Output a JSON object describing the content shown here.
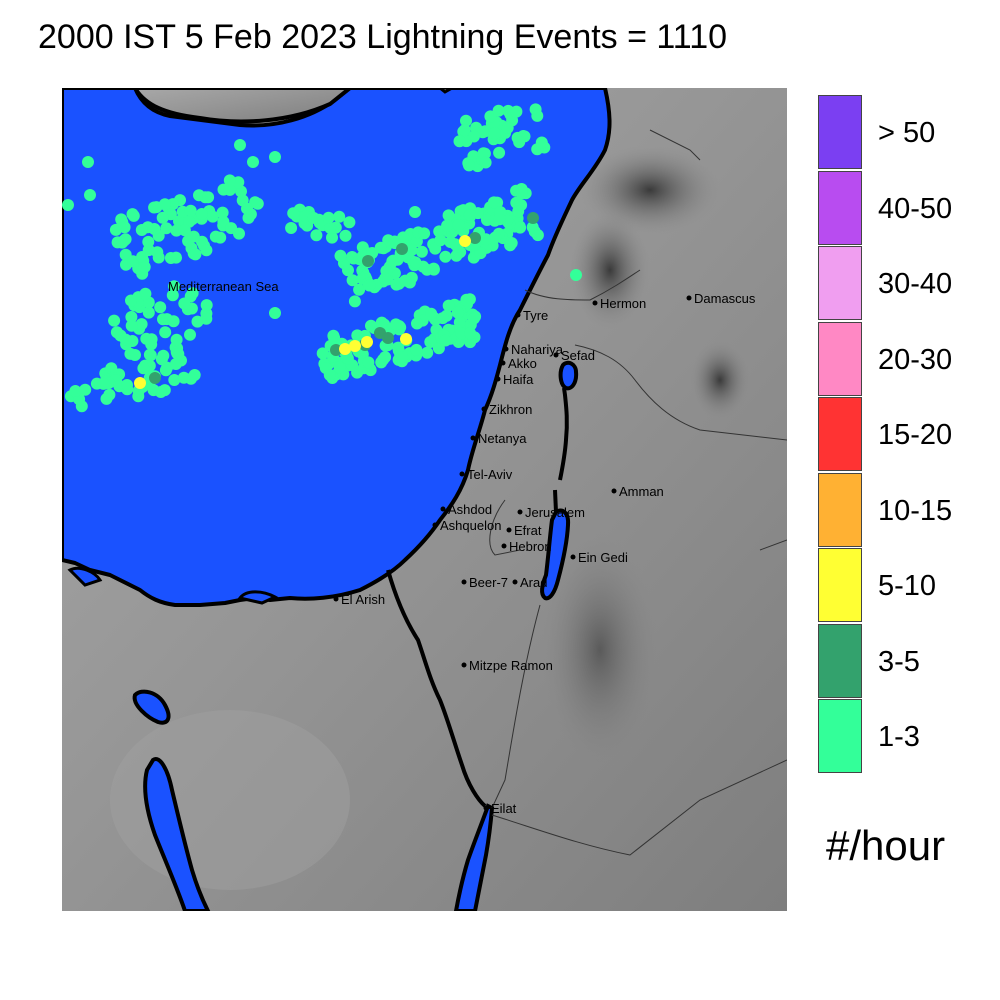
{
  "title": "2000 IST 5 Feb 2023 Lightning Events = 1110",
  "sea_label": "Mediterranean Sea",
  "units": "#/hour",
  "legend": [
    {
      "label": "> 50",
      "color": "#7b3ff2"
    },
    {
      "label": "40-50",
      "color": "#b84cf0"
    },
    {
      "label": "30-40",
      "color": "#f09ef0"
    },
    {
      "label": "20-30",
      "color": "#ff88c4"
    },
    {
      "label": "15-20",
      "color": "#ff3333"
    },
    {
      "label": "10-15",
      "color": "#ffb133"
    },
    {
      "label": "5-10",
      "color": "#ffff33"
    },
    {
      "label": "3-5",
      "color": "#33a26d"
    },
    {
      "label": "1-3",
      "color": "#33ff99"
    }
  ],
  "colors": {
    "sea": "#1a52ff",
    "land": "#8c8c8c",
    "coast": "#000000"
  },
  "cities": [
    "Tyre",
    "Hermon",
    "Damascus",
    "Nahariya",
    "Akko",
    "Sefad",
    "Haifa",
    "Zikhron",
    "Netanya",
    "Tel-Aviv",
    "Amman",
    "Ashdod",
    "Jerusalem",
    "Ashquelon",
    "Efrat",
    "Hebron",
    "Ein Gedi",
    "Beer-7",
    "Arad",
    "El Arish",
    "Mitzpe Ramon",
    "Eilat"
  ]
}
